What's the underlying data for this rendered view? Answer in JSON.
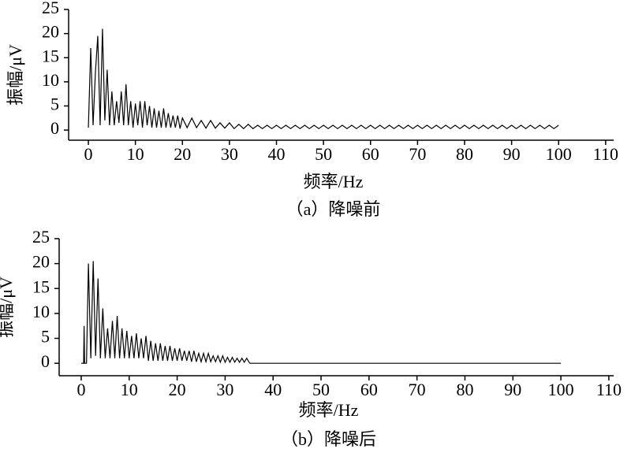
{
  "chart_data": [
    {
      "type": "line",
      "color": "#000000",
      "x": [
        0,
        0.5,
        1,
        1.5,
        2,
        2.5,
        3,
        3.5,
        4,
        4.5,
        5,
        5.5,
        6,
        6.5,
        7,
        7.5,
        8,
        8.5,
        9,
        9.5,
        10,
        10.5,
        11,
        11.5,
        12,
        12.5,
        13,
        13.5,
        14,
        14.5,
        15,
        15.5,
        16,
        16.5,
        17,
        17.5,
        18,
        18.5,
        19,
        19.5,
        20,
        21,
        22,
        23,
        24,
        25,
        26,
        27,
        28,
        29,
        30,
        31,
        32,
        33,
        34,
        35,
        36,
        37,
        38,
        39,
        40,
        41,
        42,
        43,
        44,
        45,
        46,
        47,
        48,
        49,
        50,
        51,
        52,
        53,
        54,
        55,
        56,
        57,
        58,
        59,
        60,
        61,
        62,
        63,
        64,
        65,
        66,
        67,
        68,
        69,
        70,
        71,
        72,
        73,
        74,
        75,
        76,
        77,
        78,
        79,
        80,
        81,
        82,
        83,
        84,
        85,
        86,
        87,
        88,
        89,
        90,
        91,
        92,
        93,
        94,
        95,
        96,
        97,
        98,
        99,
        100
      ],
      "values": [
        0.5,
        17,
        1,
        12,
        19.5,
        1,
        21,
        2,
        12.5,
        1,
        8,
        1,
        6,
        1.5,
        8,
        1,
        9.5,
        1,
        6,
        0.5,
        5.5,
        1,
        6,
        0.5,
        6,
        1,
        5,
        0.5,
        4.5,
        0.5,
        4,
        0.5,
        4.5,
        0.5,
        3.5,
        0.5,
        3,
        0.5,
        3,
        0.3,
        2.5,
        0.5,
        2.5,
        0.5,
        2,
        0.4,
        2,
        0.4,
        1.5,
        0.4,
        1.5,
        0.3,
        1.2,
        0.3,
        1.2,
        0.3,
        1,
        0.3,
        1,
        0.3,
        1,
        0.3,
        1,
        0.3,
        1,
        0.3,
        1,
        0.3,
        1,
        0.3,
        1,
        0.3,
        1,
        0.3,
        1,
        0.3,
        1,
        0.3,
        1,
        0.3,
        1,
        0.3,
        1,
        0.3,
        1,
        0.3,
        1,
        0.3,
        1,
        0.3,
        1,
        0.3,
        1,
        0.3,
        1,
        0.3,
        1,
        0.3,
        1,
        0.3,
        1,
        0.3,
        1,
        0.3,
        1,
        0.3,
        1,
        0.3,
        1,
        0.3,
        1,
        0.3,
        1,
        0.3,
        1,
        0.3,
        1,
        0.3,
        1,
        0.3,
        1
      ],
      "xlim": [
        -4.2,
        111.7
      ],
      "ylim": [
        -2.1,
        25
      ],
      "xticks": [
        0,
        10,
        20,
        30,
        40,
        50,
        60,
        70,
        80,
        90,
        100,
        110
      ],
      "yticks": [
        0,
        5,
        10,
        15,
        20,
        25
      ],
      "xlabel": "频率/Hz",
      "ylabel": "振幅/μV",
      "caption": "（a）降噪前"
    },
    {
      "type": "line",
      "color": "#000000",
      "x": [
        0,
        0.5,
        0.6,
        0.7,
        1.1,
        1.5,
        2,
        2.5,
        3,
        3.5,
        4,
        4.5,
        5,
        5.5,
        6,
        6.5,
        7,
        7.5,
        8,
        8.5,
        9,
        9.5,
        10,
        10.5,
        11,
        11.5,
        12,
        12.5,
        13,
        13.5,
        14,
        14.5,
        15,
        15.5,
        16,
        16.5,
        17,
        17.5,
        18,
        18.5,
        19,
        19.5,
        20,
        20.5,
        21,
        21.5,
        22,
        22.5,
        23,
        23.5,
        24,
        24.5,
        25,
        25.5,
        26,
        26.5,
        27,
        27.5,
        28,
        28.5,
        29,
        29.5,
        30,
        30.5,
        31,
        31.5,
        32,
        32.5,
        33,
        33.5,
        34,
        34.5,
        35,
        35.2,
        100
      ],
      "values": [
        0,
        0,
        7.5,
        0,
        0,
        20,
        1,
        20.5,
        1.5,
        17,
        1,
        11,
        1,
        7,
        1,
        8.5,
        1,
        9.5,
        1,
        7,
        1,
        6.5,
        1,
        5.5,
        1,
        6,
        1,
        5,
        1,
        5.5,
        0.5,
        4.5,
        0.5,
        4,
        0.5,
        4,
        0.5,
        3.5,
        0.5,
        3.5,
        0.5,
        3,
        0.5,
        3,
        0.5,
        2.5,
        0.5,
        2.5,
        0.3,
        2.5,
        0.3,
        2,
        0.3,
        2,
        0.3,
        2,
        0.3,
        1.5,
        0.3,
        1.5,
        0.2,
        1.5,
        0.2,
        1.2,
        0.2,
        1.2,
        0.2,
        1,
        0.2,
        1,
        0.2,
        1,
        0.2,
        0,
        0
      ],
      "xlim": [
        -4.6,
        111
      ],
      "ylim": [
        -2.5,
        25
      ],
      "xticks": [
        0,
        10,
        20,
        30,
        40,
        50,
        60,
        70,
        80,
        90,
        100,
        110
      ],
      "yticks": [
        0,
        5,
        10,
        15,
        20,
        25
      ],
      "xlabel": "频率/Hz",
      "ylabel": "振幅/μV",
      "caption": "（b）降噪后"
    }
  ]
}
